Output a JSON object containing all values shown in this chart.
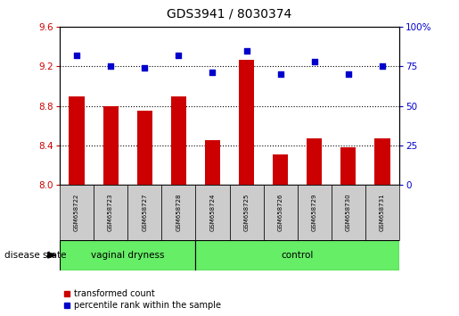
{
  "title": "GDS3941 / 8030374",
  "samples": [
    "GSM658722",
    "GSM658723",
    "GSM658727",
    "GSM658728",
    "GSM658724",
    "GSM658725",
    "GSM658726",
    "GSM658729",
    "GSM658730",
    "GSM658731"
  ],
  "bar_values": [
    8.9,
    8.8,
    8.75,
    8.9,
    8.45,
    9.27,
    8.31,
    8.47,
    8.38,
    8.47
  ],
  "dot_values": [
    82,
    75,
    74,
    82,
    71,
    85,
    70,
    78,
    70,
    75
  ],
  "ylim_left": [
    8.0,
    9.6
  ],
  "ylim_right": [
    0,
    100
  ],
  "yticks_left": [
    8.0,
    8.4,
    8.8,
    9.2,
    9.6
  ],
  "yticks_right": [
    0,
    25,
    50,
    75,
    100
  ],
  "bar_color": "#cc0000",
  "dot_color": "#0000cc",
  "group1_label": "vaginal dryness",
  "group2_label": "control",
  "group1_indices": [
    0,
    1,
    2,
    3
  ],
  "group2_indices": [
    4,
    5,
    6,
    7,
    8,
    9
  ],
  "group_bg_color": "#66ee66",
  "sample_bg_color": "#cccccc",
  "legend_bar_label": "transformed count",
  "legend_dot_label": "percentile rank within the sample",
  "disease_state_label": "disease state",
  "left_tick_color": "#cc0000",
  "right_tick_color": "#0000cc",
  "fig_width": 5.15,
  "fig_height": 3.54
}
